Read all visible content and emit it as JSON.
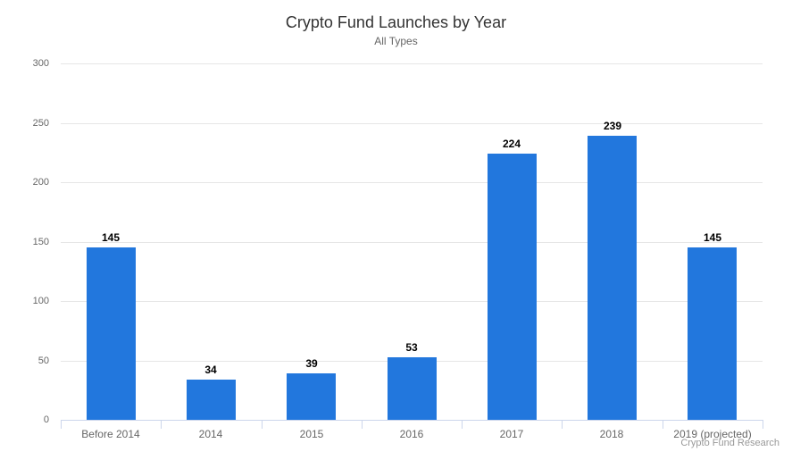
{
  "chart": {
    "title": "Crypto Fund Launches by Year",
    "subtitle": "All Types",
    "credits": "Crypto Fund Research"
  },
  "chart_data": {
    "type": "bar",
    "title": "Crypto Fund Launches by Year",
    "subtitle": "All Types",
    "categories": [
      "Before 2014",
      "2014",
      "2015",
      "2016",
      "2017",
      "2018",
      "2019 (projected)"
    ],
    "values": [
      145,
      34,
      39,
      53,
      224,
      239,
      145
    ],
    "xlabel": "",
    "ylabel": "",
    "ylim": [
      0,
      300
    ],
    "ytick_step": 50,
    "ytick_labels": [
      "0",
      "50",
      "100",
      "150",
      "200",
      "250",
      "300"
    ],
    "grid": true,
    "legend": false,
    "credits": "Crypto Fund Research"
  },
  "colors": {
    "bar": "#2277dd",
    "grid_line": "#e6e6e6",
    "axis_line": "#ccd6eb",
    "title_text": "#333333",
    "subtitle_text": "#666666",
    "axis_label_text": "#666666",
    "data_label_text": "#000000",
    "credits_text": "#999999"
  }
}
